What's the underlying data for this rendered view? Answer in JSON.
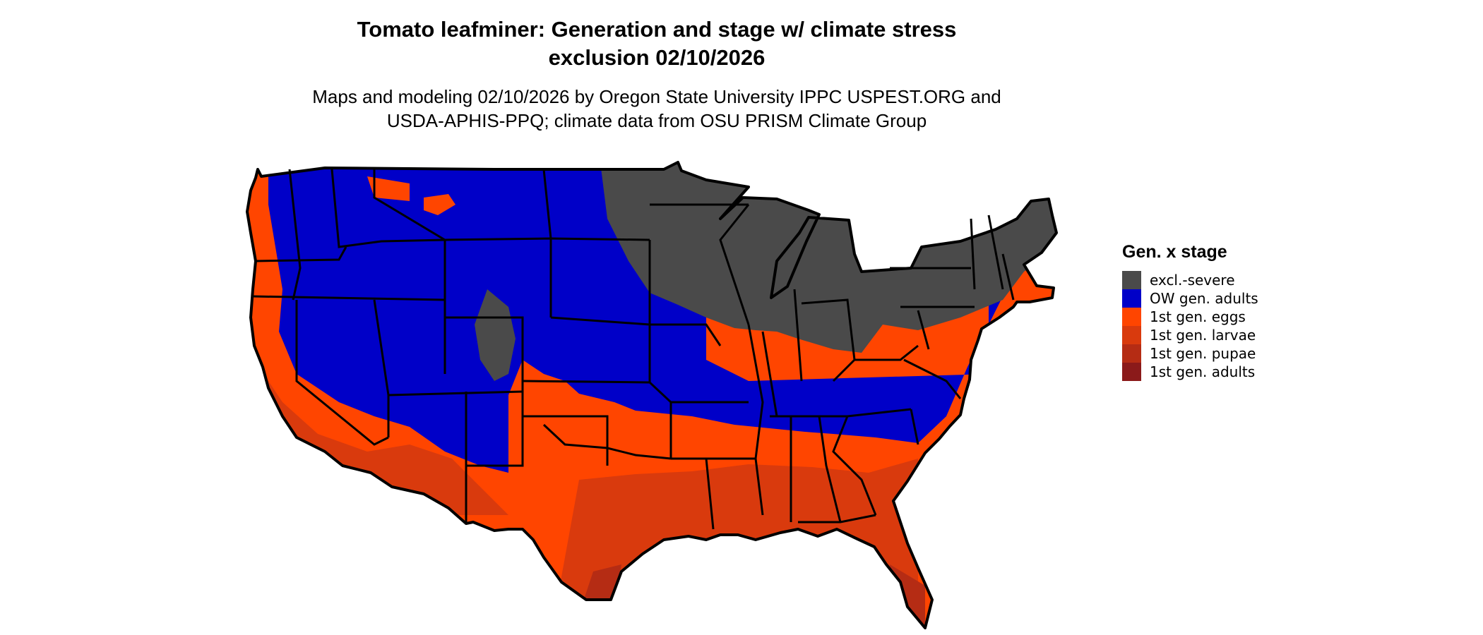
{
  "title": "Tomato leafminer: Generation and stage w/ climate stress exclusion 02/10/2026",
  "title_lines": [
    "Tomato leafminer: Generation and stage w/ climate stress",
    "exclusion 02/10/2026"
  ],
  "subtitle_lines": [
    "Maps and modeling 02/10/2026 by Oregon State University IPPC USPEST.ORG and",
    "USDA-APHIS-PPQ; climate data from OSU PRISM Climate Group"
  ],
  "legend": {
    "title": "Gen. x stage",
    "items": [
      {
        "label": "excl.-severe",
        "color": "#4a4a4a"
      },
      {
        "label": "OW gen. adults",
        "color": "#0000c8"
      },
      {
        "label": "1st gen. eggs",
        "color": "#ff4500"
      },
      {
        "label": "1st gen. larvae",
        "color": "#d93a0d"
      },
      {
        "label": "1st gen. pupae",
        "color": "#b52c14"
      },
      {
        "label": "1st gen. adults",
        "color": "#8b1a1a"
      }
    ]
  },
  "map": {
    "region": "contiguous United States",
    "border_color": "#000000"
  }
}
